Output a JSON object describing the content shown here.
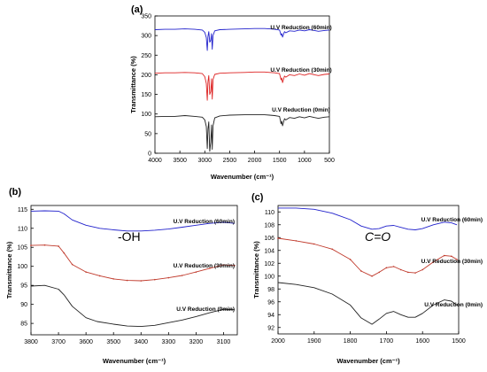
{
  "chart_data": [
    {
      "type": "line",
      "panel_label": "(a)",
      "xlabel": "Wavenumber (cm⁻¹)",
      "ylabel": "Transmittance (%)",
      "xlim": [
        4000,
        500
      ],
      "ylim": [
        0,
        350
      ],
      "xticks": [
        4000,
        3500,
        3000,
        2500,
        2000,
        1500,
        1000,
        500
      ],
      "yticks": [
        0,
        50,
        100,
        150,
        200,
        250,
        300,
        350
      ],
      "grid": false,
      "series": [
        {
          "name": "U.V Reduction (60min)",
          "color": "#2222cc",
          "x": [
            4000,
            3800,
            3600,
            3400,
            3200,
            3050,
            3000,
            2970,
            2950,
            2935,
            2920,
            2900,
            2880,
            2865,
            2850,
            2835,
            2800,
            2700,
            2500,
            2200,
            2000,
            1800,
            1700,
            1600,
            1500,
            1470,
            1455,
            1440,
            1400,
            1375,
            1300,
            1200,
            1100,
            1000,
            900,
            800,
            720,
            600,
            500
          ],
          "y": [
            315,
            316,
            316,
            317,
            316,
            314,
            308,
            295,
            262,
            298,
            310,
            283,
            288,
            305,
            265,
            300,
            312,
            315,
            316,
            317,
            318,
            318,
            317,
            316,
            314,
            301,
            305,
            296,
            310,
            307,
            312,
            311,
            314,
            312,
            315,
            313,
            311,
            313,
            314
          ]
        },
        {
          "name": "U.V Reduction (30min)",
          "color": "#dd2222",
          "x": [
            4000,
            3800,
            3600,
            3400,
            3200,
            3050,
            3000,
            2970,
            2950,
            2935,
            2920,
            2900,
            2880,
            2865,
            2850,
            2835,
            2800,
            2700,
            2500,
            2200,
            2000,
            1800,
            1700,
            1600,
            1500,
            1470,
            1455,
            1440,
            1400,
            1375,
            1300,
            1200,
            1100,
            1000,
            900,
            800,
            720,
            600,
            500
          ],
          "y": [
            204,
            205,
            205,
            206,
            205,
            203,
            195,
            178,
            135,
            183,
            198,
            150,
            157,
            190,
            138,
            188,
            201,
            204,
            205,
            206,
            207,
            207,
            206,
            205,
            203,
            187,
            192,
            180,
            197,
            194,
            200,
            198,
            202,
            199,
            203,
            200,
            198,
            201,
            202
          ]
        },
        {
          "name": "U.V Reduction (0min)",
          "color": "#222222",
          "x": [
            4000,
            3800,
            3600,
            3400,
            3200,
            3050,
            3000,
            2970,
            2950,
            2935,
            2920,
            2900,
            2880,
            2865,
            2850,
            2835,
            2800,
            2700,
            2500,
            2200,
            2000,
            1800,
            1700,
            1600,
            1500,
            1470,
            1455,
            1440,
            1400,
            1375,
            1300,
            1200,
            1100,
            1000,
            900,
            800,
            720,
            600,
            500
          ],
          "y": [
            93,
            94,
            94,
            96,
            94,
            92,
            85,
            68,
            12,
            62,
            80,
            5,
            28,
            72,
            10,
            70,
            90,
            95,
            97,
            98,
            98,
            98,
            97,
            96,
            94,
            75,
            82,
            70,
            88,
            85,
            91,
            89,
            93,
            90,
            94,
            91,
            89,
            92,
            93
          ]
        }
      ]
    },
    {
      "type": "line",
      "panel_label": "(b)",
      "annotation": "-OH",
      "xlabel": "Wavenumber (cm⁻¹)",
      "ylabel": "Transmittance (%)",
      "xlim": [
        3800,
        3050
      ],
      "ylim": [
        82,
        116
      ],
      "xticks": [
        3800,
        3700,
        3600,
        3500,
        3400,
        3300,
        3200,
        3100
      ],
      "yticks": [
        85,
        90,
        95,
        100,
        105,
        110,
        115
      ],
      "grid": false,
      "series": [
        {
          "name": "U.V Reduction (60min)",
          "color": "#2222cc",
          "x": [
            3800,
            3750,
            3700,
            3680,
            3650,
            3600,
            3550,
            3500,
            3450,
            3400,
            3350,
            3300,
            3250,
            3200,
            3150,
            3100,
            3060
          ],
          "y": [
            114.5,
            114.6,
            114.5,
            113.8,
            112.2,
            110.8,
            110.0,
            109.6,
            109.3,
            109.3,
            109.5,
            109.8,
            110.3,
            110.8,
            111.3,
            111.6,
            111.3
          ]
        },
        {
          "name": "U.V Reduction (30min)",
          "color": "#c0392b",
          "x": [
            3800,
            3750,
            3700,
            3680,
            3650,
            3600,
            3550,
            3500,
            3450,
            3400,
            3350,
            3300,
            3250,
            3200,
            3150,
            3100,
            3060
          ],
          "y": [
            105.5,
            105.6,
            105.3,
            103.5,
            100.5,
            98.5,
            97.5,
            96.7,
            96.3,
            96.2,
            96.5,
            97.0,
            97.6,
            98.5,
            99.5,
            100.4,
            100.2
          ]
        },
        {
          "name": "U.V Reduction (0min)",
          "color": "#222222",
          "x": [
            3800,
            3750,
            3700,
            3680,
            3650,
            3600,
            3560,
            3500,
            3450,
            3400,
            3350,
            3300,
            3250,
            3200,
            3150,
            3100,
            3060
          ],
          "y": [
            94.8,
            95.0,
            94.0,
            92.5,
            89.5,
            86.5,
            85.5,
            84.8,
            84.3,
            84.2,
            84.5,
            85.2,
            85.9,
            86.8,
            87.8,
            88.7,
            88.6
          ]
        }
      ]
    },
    {
      "type": "line",
      "panel_label": "(c)",
      "annotation": "C=O",
      "xlabel": "Wavenumber (cm⁻¹)",
      "ylabel": "Transmittance (%)",
      "xlim": [
        2000,
        1500
      ],
      "ylim": [
        91,
        111
      ],
      "xticks": [
        2000,
        1900,
        1800,
        1700,
        1600,
        1500
      ],
      "yticks": [
        92,
        94,
        96,
        98,
        100,
        102,
        104,
        106,
        108,
        110
      ],
      "grid": false,
      "series": [
        {
          "name": "U.V Reduction (60min)",
          "color": "#2222cc",
          "x": [
            2000,
            1950,
            1900,
            1850,
            1800,
            1770,
            1740,
            1720,
            1700,
            1680,
            1660,
            1640,
            1620,
            1600,
            1570,
            1540,
            1520,
            1505
          ],
          "y": [
            110.6,
            110.6,
            110.4,
            109.8,
            108.8,
            107.8,
            107.3,
            107.4,
            107.8,
            107.9,
            107.6,
            107.3,
            107.2,
            107.4,
            108.0,
            108.4,
            108.3,
            108.0
          ]
        },
        {
          "name": "U.V Reduction (30min)",
          "color": "#c0392b",
          "x": [
            2000,
            1950,
            1900,
            1850,
            1800,
            1770,
            1740,
            1720,
            1700,
            1680,
            1660,
            1640,
            1620,
            1600,
            1570,
            1540,
            1520,
            1505
          ],
          "y": [
            105.9,
            105.5,
            105.0,
            104.2,
            102.6,
            100.8,
            100.0,
            100.6,
            101.3,
            101.5,
            101.0,
            100.6,
            100.5,
            101.0,
            102.2,
            103.2,
            103.1,
            102.6
          ]
        },
        {
          "name": "U.V Reduction (0min)",
          "color": "#222222",
          "x": [
            2000,
            1950,
            1900,
            1850,
            1800,
            1770,
            1740,
            1720,
            1700,
            1680,
            1660,
            1640,
            1620,
            1600,
            1570,
            1540,
            1520,
            1505
          ],
          "y": [
            99.0,
            98.7,
            98.2,
            97.2,
            95.5,
            93.5,
            92.5,
            93.3,
            94.2,
            94.5,
            94.0,
            93.6,
            93.6,
            94.2,
            95.5,
            96.3,
            96.1,
            95.5
          ]
        }
      ]
    }
  ]
}
